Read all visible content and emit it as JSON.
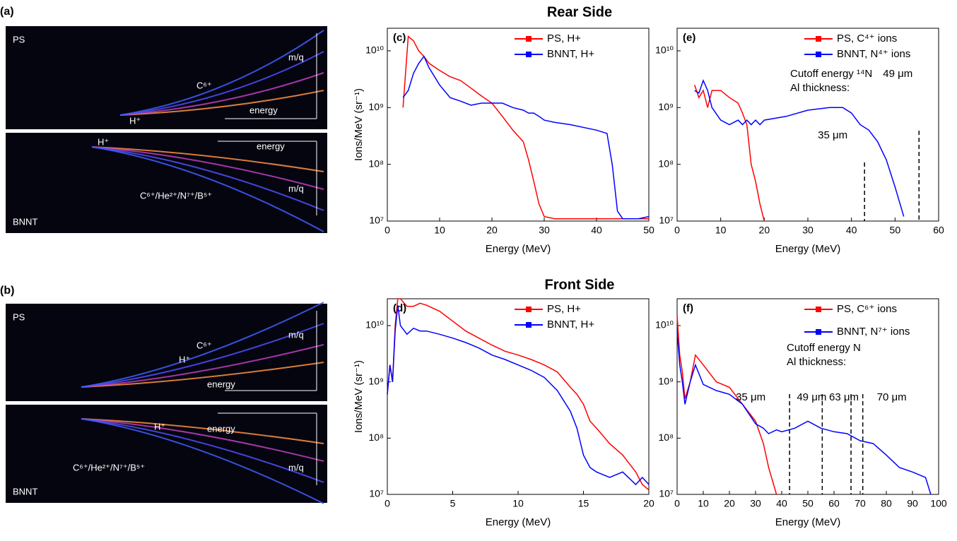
{
  "figure": {
    "rear_title": "Rear Side",
    "front_title": "Front Side",
    "images": [
      {
        "label": "(a)",
        "top": {
          "name": "PS",
          "texts": [
            "C⁶⁺",
            "H⁺",
            "m/q",
            "energy"
          ]
        },
        "bottom": {
          "name": "BNNT",
          "texts": [
            "H⁺",
            "energy",
            "C⁶⁺/He²⁺/N⁷⁺/B⁵⁺",
            "m/q"
          ]
        }
      },
      {
        "label": "(b)",
        "top": {
          "name": "PS",
          "texts": [
            "C⁶⁺",
            "H⁺",
            "m/q",
            "energy"
          ]
        },
        "bottom": {
          "name": "BNNT",
          "texts": [
            "H⁺",
            "energy",
            "C⁶⁺/He²⁺/N⁷⁺/B⁵⁺",
            "m/q"
          ]
        }
      }
    ]
  },
  "chart_data": [
    {
      "type": "line",
      "panel_label": "(c)",
      "xlabel": "Energy (MeV)",
      "ylabel": "Ions/MeV (sr⁻¹)",
      "yscale": "log",
      "xlim": [
        0,
        50
      ],
      "xticks": [
        0,
        10,
        20,
        30,
        40,
        50
      ],
      "ylim": [
        10000000,
        25000000000
      ],
      "yticks": [
        {
          "value": 10000000,
          "label": "10⁷"
        },
        {
          "value": 100000000,
          "label": "10⁸"
        },
        {
          "value": 1000000000,
          "label": "10⁹"
        },
        {
          "value": 10000000000,
          "label": "10¹⁰"
        }
      ],
      "x": [
        3,
        4,
        5,
        6,
        7,
        8,
        10,
        12,
        14,
        16,
        18,
        20,
        22,
        24,
        26,
        27,
        28,
        29,
        30,
        32,
        35,
        40,
        42,
        43,
        44,
        45,
        48,
        50
      ],
      "series": [
        {
          "name": "PS, H+",
          "color": "#ff0000",
          "values": [
            1000000000,
            18000000000,
            15000000000,
            10000000000,
            8000000000,
            6000000000,
            4500000000,
            3500000000,
            3000000000,
            2200000000,
            1600000000,
            1200000000,
            700000000,
            400000000,
            250000000,
            120000000,
            50000000,
            20000000,
            12000000,
            11000000,
            11000000,
            11000000,
            11000000,
            11000000,
            11000000,
            11000000,
            11000000,
            11000000
          ]
        },
        {
          "name": "BNNT, H+",
          "color": "#0000ff",
          "values": [
            1500000000,
            2000000000,
            4000000000,
            6000000000,
            8000000000,
            5000000000,
            2500000000,
            1500000000,
            1300000000,
            1100000000,
            1200000000,
            1200000000,
            1200000000,
            1000000000,
            900000000,
            800000000,
            800000000,
            700000000,
            600000000,
            550000000,
            500000000,
            400000000,
            350000000,
            100000000,
            15000000,
            11000000,
            11000000,
            12000000
          ]
        }
      ]
    },
    {
      "type": "line",
      "panel_label": "(e)",
      "xlabel": "Energy (MeV)",
      "yscale": "log",
      "xlim": [
        0,
        60
      ],
      "xticks": [
        0,
        10,
        20,
        30,
        40,
        50,
        60
      ],
      "ylim": [
        10000000,
        25000000000
      ],
      "yticks": [
        {
          "value": 10000000,
          "label": "10⁷"
        },
        {
          "value": 100000000,
          "label": "10⁸"
        },
        {
          "value": 1000000000,
          "label": "10⁹"
        },
        {
          "value": 10000000000,
          "label": "10¹⁰"
        }
      ],
      "x": [
        4,
        5,
        6,
        7,
        8,
        10,
        12,
        14,
        15,
        16,
        17,
        18,
        19,
        20,
        25,
        30,
        35,
        38,
        40,
        42,
        44,
        46,
        48,
        50,
        52
      ],
      "series": [
        {
          "name": "PS, C⁴⁺ ions",
          "color": "#ff0000",
          "values": [
            2500000000,
            1500000000,
            2000000000,
            1000000000,
            2000000000,
            2000000000,
            1500000000,
            1200000000,
            800000000,
            500000000,
            100000000,
            50000000,
            20000000,
            10000000,
            null,
            null,
            null,
            null,
            null,
            null,
            null,
            null,
            null,
            null,
            null
          ]
        },
        {
          "name": "BNNT, N⁴⁺ ions",
          "color": "#0000ff",
          "values": [
            2000000000,
            1800000000,
            3000000000,
            2000000000,
            1000000000,
            600000000,
            500000000,
            600000000,
            500000000,
            600000000,
            500000000,
            600000000,
            500000000,
            600000000,
            700000000,
            900000000,
            1000000000,
            1000000000,
            800000000,
            500000000,
            400000000,
            250000000,
            120000000,
            40000000,
            12000000
          ]
        }
      ],
      "annotations": [
        {
          "text": "Cutoff energy ¹⁴N"
        },
        {
          "text": "Al thickness:"
        },
        {
          "text": "35 μm",
          "x": 43
        },
        {
          "text": "49 μm",
          "x": 55.5
        }
      ]
    },
    {
      "type": "line",
      "panel_label": "(d)",
      "xlabel": "Energy (MeV)",
      "ylabel": "Ions/MeV (sr⁻¹)",
      "yscale": "log",
      "xlim": [
        0,
        20
      ],
      "xticks": [
        0,
        5,
        10,
        15,
        20
      ],
      "ylim": [
        10000000,
        30000000000
      ],
      "yticks": [
        {
          "value": 10000000,
          "label": "10⁷"
        },
        {
          "value": 100000000,
          "label": "10⁸"
        },
        {
          "value": 1000000000,
          "label": "10⁹"
        },
        {
          "value": 10000000000,
          "label": "10¹⁰"
        }
      ],
      "x": [
        0,
        0.2,
        0.4,
        0.6,
        0.8,
        1,
        1.5,
        2,
        2.5,
        3,
        4,
        5,
        6,
        7,
        8,
        9,
        10,
        11,
        12,
        13,
        14,
        14.5,
        15,
        15.5,
        16,
        17,
        18,
        19,
        19.5,
        20
      ],
      "series": [
        {
          "name": "PS, H+",
          "color": "#ff0000",
          "values": [
            600000000,
            2000000000,
            1000000000,
            10000000000,
            30000000000,
            30000000000,
            22000000000,
            22000000000,
            25000000000,
            23000000000,
            18000000000,
            12000000000,
            8000000000,
            6000000000,
            4500000000,
            3500000000,
            3000000000,
            2500000000,
            2000000000,
            1500000000,
            800000000,
            600000000,
            400000000,
            200000000,
            150000000,
            80000000,
            50000000,
            25000000,
            15000000,
            12000000
          ]
        },
        {
          "name": "BNNT, H+",
          "color": "#0000ff",
          "values": [
            600000000,
            2000000000,
            1000000000,
            8000000000,
            23000000000,
            10000000000,
            7000000000,
            9000000000,
            8000000000,
            8000000000,
            7000000000,
            6000000000,
            5000000000,
            4000000000,
            3000000000,
            2500000000,
            2000000000,
            1600000000,
            1200000000,
            700000000,
            300000000,
            150000000,
            50000000,
            30000000,
            25000000,
            20000000,
            25000000,
            15000000,
            20000000,
            15000000
          ]
        }
      ]
    },
    {
      "type": "line",
      "panel_label": "(f)",
      "xlabel": "Energy (MeV)",
      "yscale": "log",
      "xlim": [
        0,
        100
      ],
      "xticks": [
        0,
        10,
        20,
        30,
        40,
        50,
        60,
        70,
        80,
        90,
        100
      ],
      "ylim": [
        10000000,
        30000000000
      ],
      "yticks": [
        {
          "value": 10000000,
          "label": "10⁷"
        },
        {
          "value": 100000000,
          "label": "10⁸"
        },
        {
          "value": 1000000000,
          "label": "10⁹"
        },
        {
          "value": 10000000000,
          "label": "10¹⁰"
        }
      ],
      "x": [
        0,
        1,
        2,
        3,
        5,
        7,
        10,
        15,
        20,
        25,
        30,
        33,
        35,
        38,
        40,
        45,
        50,
        55,
        60,
        65,
        70,
        75,
        80,
        85,
        90,
        95,
        97
      ],
      "series": [
        {
          "name": "PS, C⁶⁺ ions",
          "color": "#ff0000",
          "values": [
            15000000000,
            3000000000,
            1500000000,
            500000000,
            1000000000,
            3000000000,
            2000000000,
            1000000000,
            800000000,
            400000000,
            200000000,
            80000000,
            30000000,
            10000000,
            null,
            null,
            null,
            null,
            null,
            null,
            null,
            null,
            null,
            null,
            null,
            null,
            null
          ]
        },
        {
          "name": "BNNT, N⁷⁺ ions",
          "color": "#0000ff",
          "values": [
            8000000000,
            2000000000,
            1000000000,
            400000000,
            1000000000,
            2000000000,
            900000000,
            700000000,
            600000000,
            400000000,
            180000000,
            150000000,
            120000000,
            140000000,
            130000000,
            150000000,
            200000000,
            150000000,
            130000000,
            120000000,
            90000000,
            80000000,
            50000000,
            30000000,
            25000000,
            20000000,
            10000000
          ]
        }
      ],
      "annotations": [
        {
          "text": "Cutoff energy N"
        },
        {
          "text": "Al thickness:"
        },
        {
          "text": "35 μm",
          "x": 43
        },
        {
          "text": "49 μm",
          "x": 55.5
        },
        {
          "text": "63 μm",
          "x": 66.5
        },
        {
          "text": "70 μm",
          "x": 71
        }
      ]
    }
  ]
}
